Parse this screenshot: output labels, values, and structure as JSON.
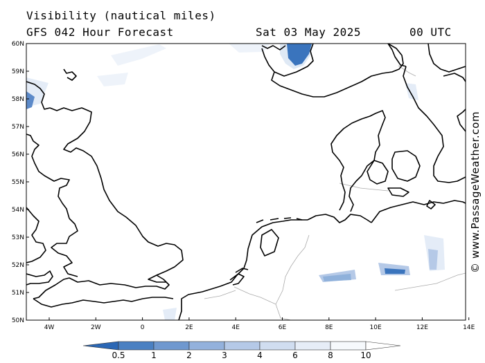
{
  "header": {
    "title": "Visibility (nautical miles)",
    "subtitle": "GFS 042 Hour Forecast",
    "date": "Sat 03 May 2025",
    "time": "00 UTC"
  },
  "credit": "© www.PassageWeather.com",
  "map": {
    "lat_labels": [
      "60N",
      "59N",
      "58N",
      "57N",
      "56N",
      "55N",
      "54N",
      "53N",
      "52N",
      "51N",
      "50N"
    ],
    "lon_labels": [
      "4W",
      "2W",
      "0",
      "2E",
      "4E",
      "6E",
      "8E",
      "10E",
      "12E",
      "14E"
    ],
    "colors": {
      "land_outline": "#000000",
      "border": "#aaaaaa",
      "fog_dark": "#3a74bd",
      "fog_mid": "#8fb1db",
      "fog_light": "#dfe9f5"
    }
  },
  "legend": {
    "labels": [
      "0.5",
      "1",
      "2",
      "3",
      "4",
      "6",
      "8",
      "10"
    ],
    "colors": [
      "#2b67b5",
      "#4a80c2",
      "#6f98cf",
      "#93b1dc",
      "#b5c9e7",
      "#d0ddf0",
      "#e6edf7",
      "#f6f9fc",
      "#ffffff"
    ]
  }
}
